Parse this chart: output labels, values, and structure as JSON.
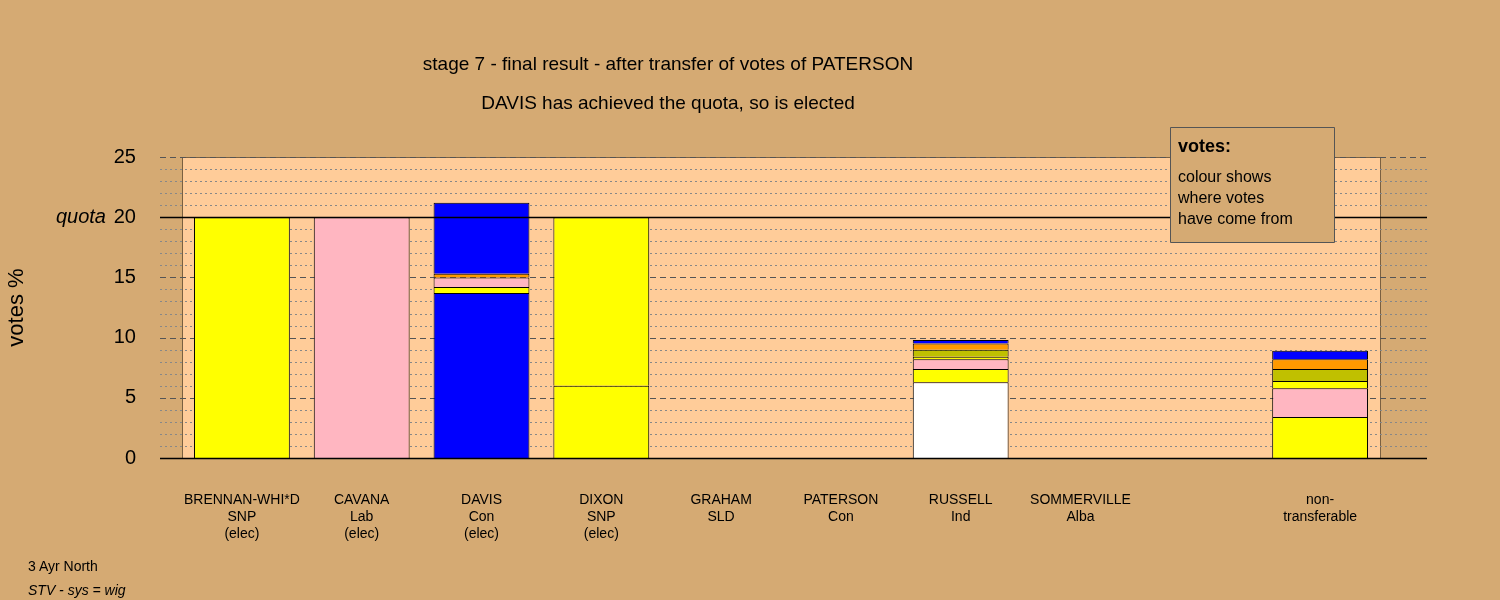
{
  "chart_data": {
    "type": "bar",
    "stacked": true,
    "title": "stage 7 - final result - after transfer of votes of PATERSON",
    "subtitle": "DAVIS has achieved the quota, so is elected",
    "ylabel": "votes %",
    "categories": [
      "BRENNAN-WHI*D\nSNP\n(elec)",
      "CAVANA\nLab\n(elec)",
      "DAVIS\nCon\n(elec)",
      "DIXON\nSNP\n(elec)",
      "GRAHAM\nSLD",
      "PATERSON\nCon",
      "RUSSELL\nInd",
      "SOMMERVILLE\nAlba",
      null,
      "non-\ntransferable"
    ],
    "series": [
      {
        "colors": [
          "#ffff00",
          "#ffb6c1",
          "#0000ff",
          "#ffff00",
          "#ffff00",
          "#0000ff",
          "#ffffff",
          "#ff9900",
          "#ffffff",
          "#ffff00"
        ],
        "values": [
          20,
          20,
          13.7,
          6.0,
          0,
          0,
          6.3,
          0,
          null,
          3.4
        ]
      },
      {
        "color": "#ffff00",
        "values": [
          null,
          null,
          0.5,
          14.0,
          null,
          null,
          1.1,
          null,
          null,
          null
        ]
      },
      {
        "color": "#ffb6c1",
        "values": [
          null,
          null,
          0.8,
          null,
          null,
          null,
          0.8,
          null,
          null,
          2.4
        ]
      },
      {
        "color": "#ffff00",
        "values": [
          null,
          null,
          null,
          null,
          null,
          null,
          0.2,
          null,
          null,
          0.6
        ]
      },
      {
        "color": "#c0c000",
        "values": [
          null,
          null,
          null,
          null,
          null,
          null,
          0.6,
          null,
          null,
          1.0
        ]
      },
      {
        "color": "#ff9900",
        "values": [
          null,
          null,
          0.3,
          null,
          null,
          null,
          0.5,
          null,
          null,
          0.8
        ]
      },
      {
        "color": "#0000ff",
        "values": [
          null,
          null,
          5.9,
          null,
          null,
          null,
          0.3,
          null,
          null,
          0.7
        ]
      }
    ],
    "ylim": [
      0,
      25
    ],
    "yticks": [
      0,
      {
        "value": 1,
        "label": null
      },
      {
        "value": 2,
        "label": null
      },
      {
        "value": 3,
        "label": null
      },
      {
        "value": 4,
        "label": null
      },
      5,
      {
        "value": 6,
        "label": null
      },
      {
        "value": 7,
        "label": null
      },
      {
        "value": 8,
        "label": null
      },
      {
        "value": 9,
        "label": null
      },
      10,
      {
        "value": 11,
        "label": null
      },
      {
        "value": 12,
        "label": null
      },
      {
        "value": 13,
        "label": null
      },
      {
        "value": 14,
        "label": null
      },
      15,
      {
        "value": 16,
        "label": null
      },
      {
        "value": 17,
        "label": null
      },
      {
        "value": 18,
        "label": null
      },
      {
        "value": 19,
        "label": null
      },
      20,
      {
        "value": 21,
        "label": null
      },
      {
        "value": 22,
        "label": null
      },
      {
        "value": 23,
        "label": null
      },
      {
        "value": 24,
        "label": null
      },
      25
    ],
    "grid": "y",
    "ref_lines": [
      {
        "axis": "y",
        "value": 20,
        "label": "quota",
        "color": "#000000",
        "line_style": "solid"
      }
    ],
    "annotations": [
      "votes:",
      "colour shows\nwhere votes\nhave come from",
      "3 Ayr North",
      "STV - sys = wig"
    ]
  }
}
